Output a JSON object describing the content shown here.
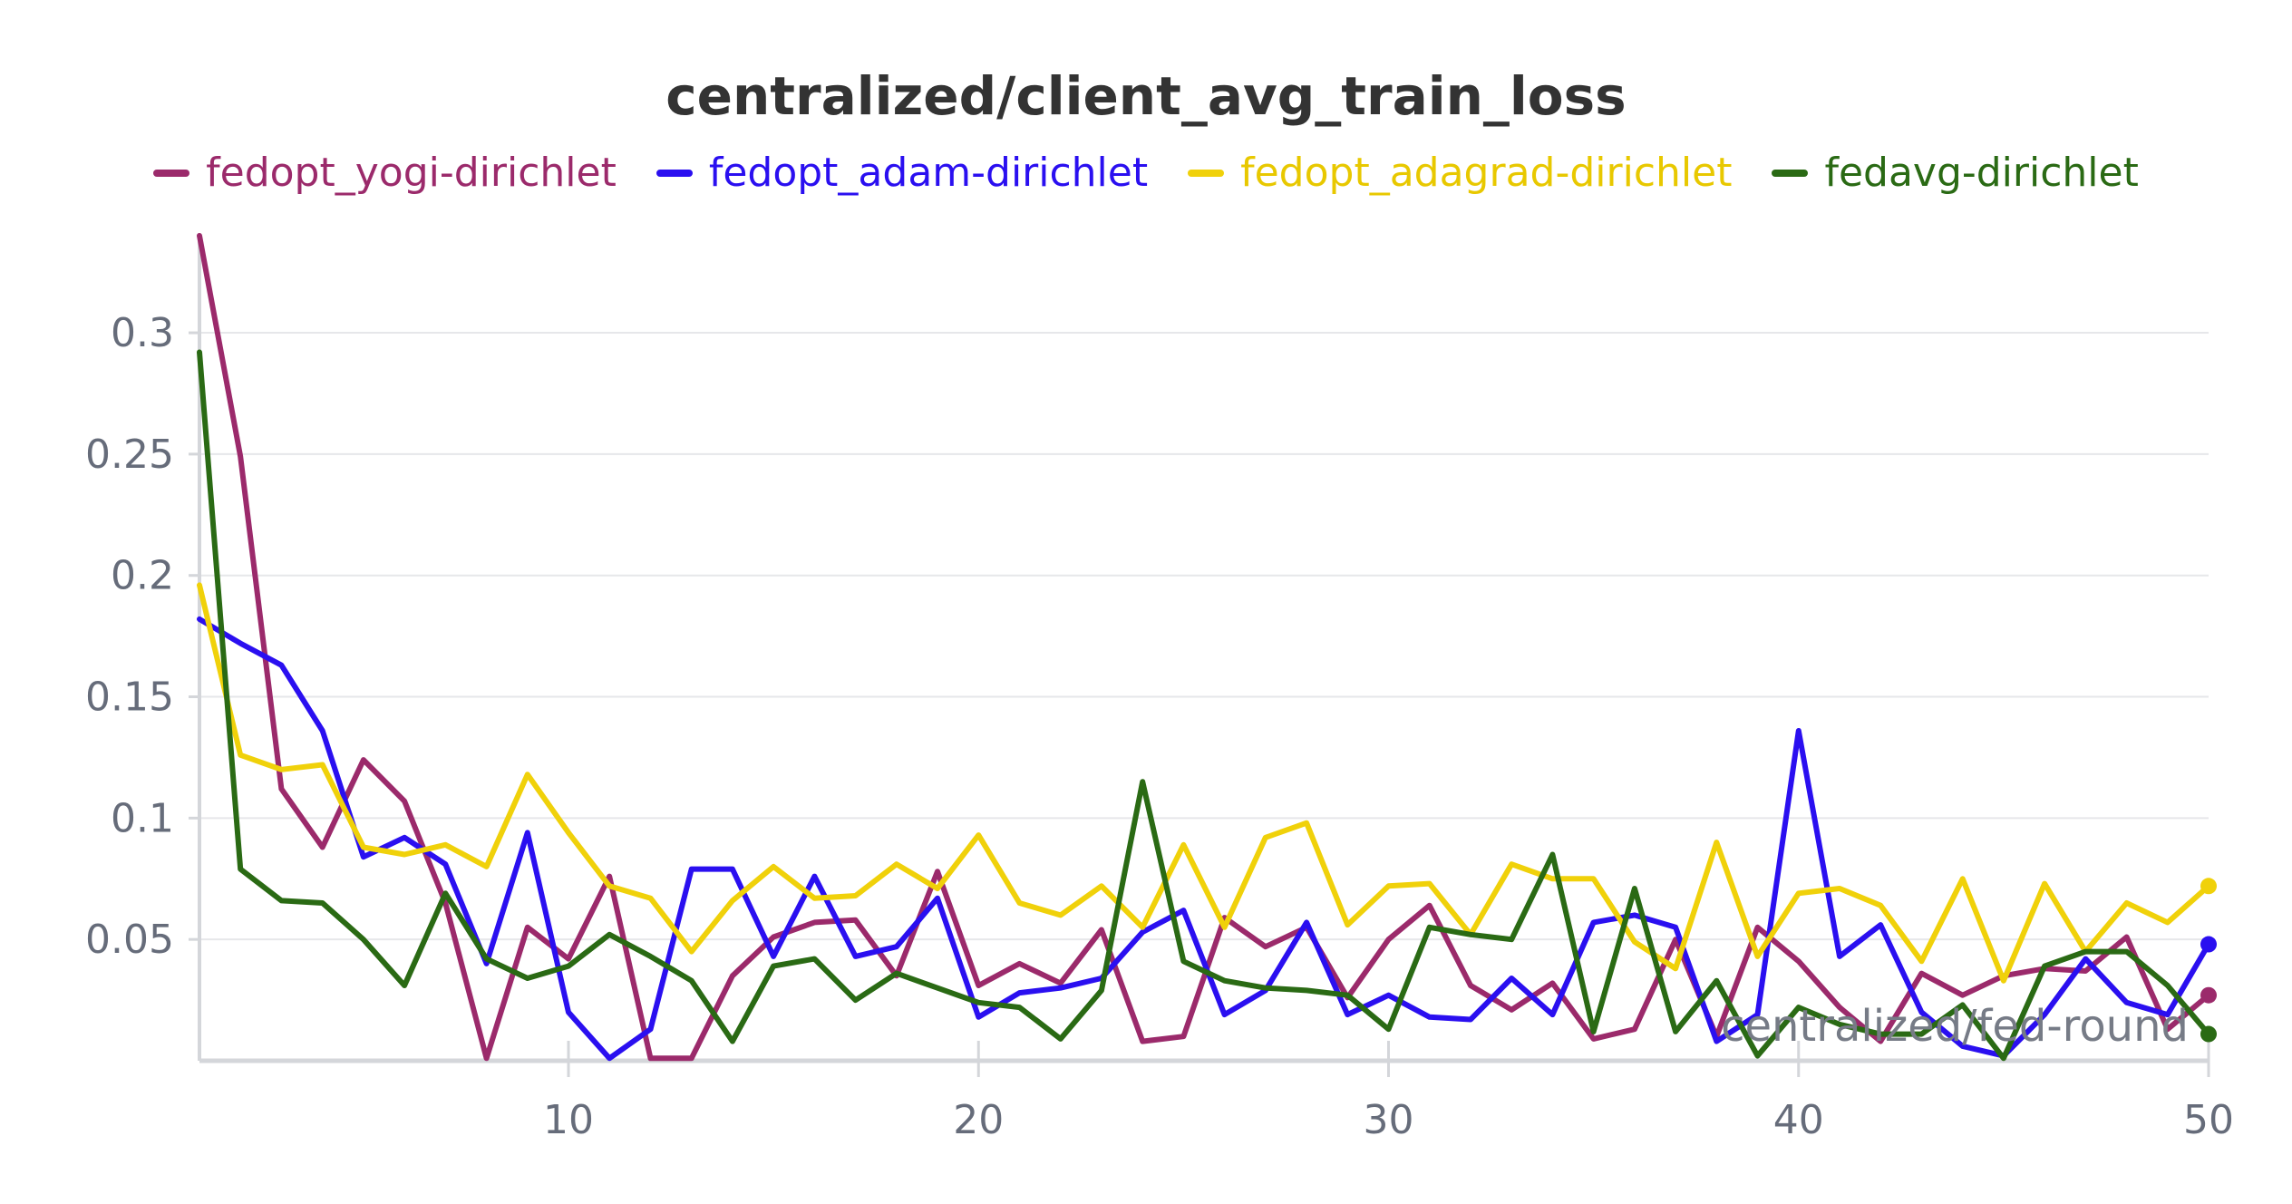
{
  "chart_data": {
    "type": "line",
    "title": "centralized/client_avg_train_loss",
    "xlabel": "centralized/fed-round",
    "ylabel": "",
    "xlim": [
      1,
      50
    ],
    "ylim": [
      0,
      0.34
    ],
    "xticks": [
      10,
      20,
      30,
      40,
      50
    ],
    "xtick_labels": [
      "10",
      "20",
      "30",
      "40",
      "50"
    ],
    "yticks": [
      0.05,
      0.1,
      0.15,
      0.2,
      0.25,
      0.3
    ],
    "ytick_labels": [
      "0.05",
      "0.1",
      "0.15",
      "0.2",
      "0.25",
      "0.3"
    ],
    "grid": "horizontal",
    "legend_position": "top-center",
    "x": [
      1,
      2,
      3,
      4,
      5,
      6,
      7,
      8,
      9,
      10,
      11,
      12,
      13,
      14,
      15,
      16,
      17,
      18,
      19,
      20,
      21,
      22,
      23,
      24,
      25,
      26,
      27,
      28,
      29,
      30,
      31,
      32,
      33,
      34,
      35,
      36,
      37,
      38,
      39,
      40,
      41,
      42,
      43,
      44,
      45,
      46,
      47,
      48,
      49,
      50
    ],
    "series": [
      {
        "name": "fedopt_yogi-dirichlet",
        "color": "#9b2a6b",
        "values": [
          0.34,
          0.249,
          0.112,
          0.088,
          0.124,
          0.107,
          0.065,
          0.001,
          0.055,
          0.042,
          0.076,
          0.001,
          0.001,
          0.035,
          0.051,
          0.057,
          0.058,
          0.035,
          0.078,
          0.031,
          0.04,
          0.032,
          0.054,
          0.008,
          0.01,
          0.059,
          0.047,
          0.055,
          0.026,
          0.05,
          0.064,
          0.031,
          0.021,
          0.032,
          0.009,
          0.013,
          0.05,
          0.01,
          0.055,
          0.041,
          0.022,
          0.008,
          0.036,
          0.027,
          0.035,
          0.038,
          0.037,
          0.051,
          0.013,
          0.027
        ]
      },
      {
        "name": "fedopt_adam-dirichlet",
        "color": "#2a0ff0",
        "values": [
          0.182,
          0.172,
          0.163,
          0.136,
          0.084,
          0.092,
          0.081,
          0.04,
          0.094,
          0.02,
          0.001,
          0.013,
          0.079,
          0.079,
          0.043,
          0.076,
          0.043,
          0.047,
          0.067,
          0.018,
          0.028,
          0.03,
          0.034,
          0.053,
          0.062,
          0.019,
          0.029,
          0.057,
          0.019,
          0.027,
          0.018,
          0.017,
          0.034,
          0.019,
          0.057,
          0.06,
          0.055,
          0.008,
          0.019,
          0.136,
          0.043,
          0.056,
          0.02,
          0.006,
          0.002,
          0.019,
          0.042,
          0.024,
          0.019,
          0.048
        ]
      },
      {
        "name": "fedopt_adagrad-dirichlet",
        "color": "#f0d10a",
        "values": [
          0.196,
          0.126,
          0.12,
          0.122,
          0.088,
          0.085,
          0.089,
          0.08,
          0.118,
          0.094,
          0.072,
          0.067,
          0.045,
          0.066,
          0.08,
          0.067,
          0.068,
          0.081,
          0.071,
          0.093,
          0.065,
          0.06,
          0.072,
          0.055,
          0.089,
          0.055,
          0.092,
          0.098,
          0.056,
          0.072,
          0.073,
          0.052,
          0.081,
          0.075,
          0.075,
          0.049,
          0.038,
          0.09,
          0.043,
          0.069,
          0.071,
          0.064,
          0.041,
          0.075,
          0.033,
          0.073,
          0.045,
          0.065,
          0.057,
          0.072
        ]
      },
      {
        "name": "fedavg-dirichlet",
        "color": "#2a6a14",
        "values": [
          0.292,
          0.079,
          0.066,
          0.065,
          0.05,
          0.031,
          0.069,
          0.042,
          0.034,
          0.039,
          0.052,
          0.043,
          0.033,
          0.008,
          0.039,
          0.042,
          0.025,
          0.036,
          0.03,
          0.024,
          0.022,
          0.009,
          0.029,
          0.115,
          0.041,
          0.033,
          0.03,
          0.029,
          0.027,
          0.013,
          0.055,
          0.052,
          0.05,
          0.085,
          0.012,
          0.071,
          0.012,
          0.033,
          0.002,
          0.022,
          0.015,
          0.011,
          0.011,
          0.023,
          0.001,
          0.039,
          0.045,
          0.045,
          0.031,
          0.011
        ]
      }
    ]
  }
}
